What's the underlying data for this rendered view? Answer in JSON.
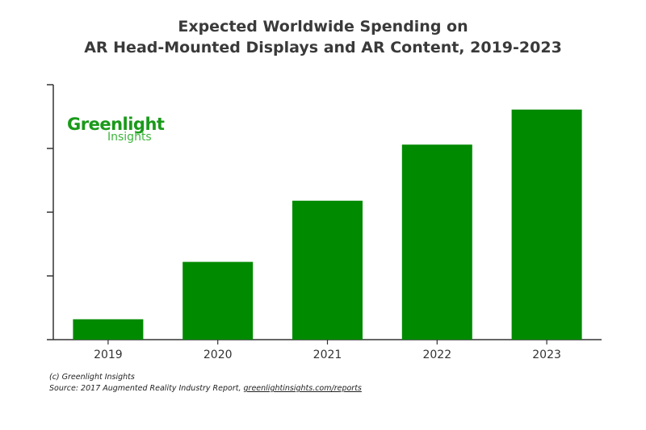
{
  "title_line1": "Expected Worldwide Spending on",
  "title_line2": "AR Head-Mounted Displays and AR Content, 2019-2023",
  "logo": {
    "line1": "Greenlight",
    "line2": "Insights"
  },
  "footer": {
    "copyright": "(c) Greenlight Insights",
    "source_prefix": "Source: 2017 Augmented Reality Industry Report, ",
    "source_link": "greenlightinsights.com/reports"
  },
  "chart_data": {
    "type": "bar",
    "title": "Expected Worldwide Spending on AR Head-Mounted Displays and AR Content, 2019-2023",
    "categories": [
      "2019",
      "2020",
      "2021",
      "2022",
      "2023"
    ],
    "values": [
      0.32,
      1.22,
      2.18,
      3.06,
      3.61
    ],
    "ylim": [
      0,
      4
    ],
    "y_ticks_unlabeled": [
      0,
      1,
      2,
      3,
      4
    ],
    "xlabel": "",
    "ylabel": "",
    "grid": false,
    "bar_color": "#008a00"
  }
}
